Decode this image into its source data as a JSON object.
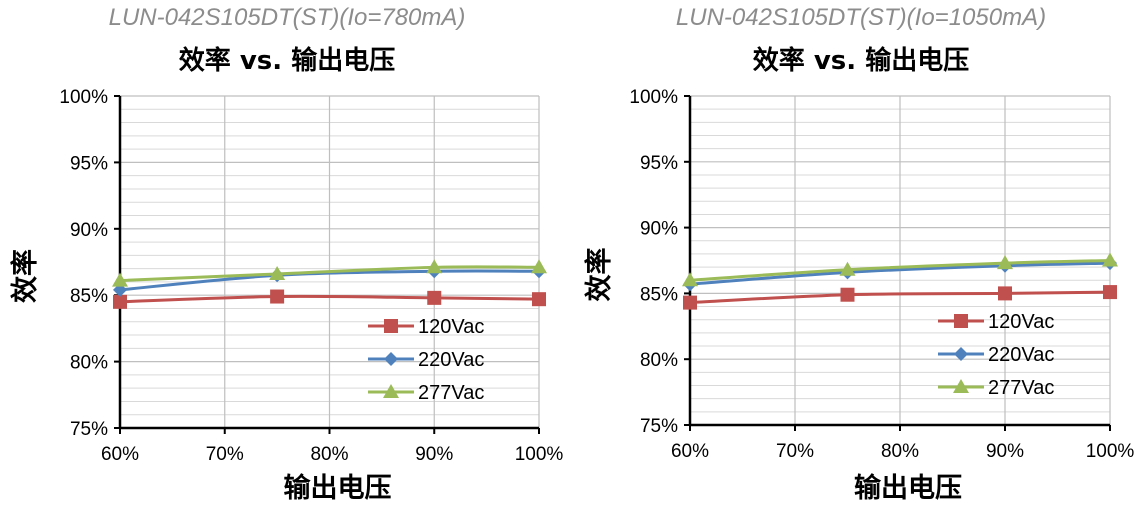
{
  "colors": {
    "series_120": "#c0504d",
    "series_220": "#4f81bd",
    "series_277": "#9bbb59",
    "grid": "#bfbfbf",
    "subtitle": "#8c8c8c"
  },
  "chart_data": [
    {
      "type": "line",
      "subtitle": "LUN-042S105DT(ST)(Io=780mA)",
      "title": "效率 vs. 输出电压",
      "xlabel": "输出电压",
      "ylabel": "效率",
      "x": [
        60,
        75,
        90,
        100
      ],
      "xticks": [
        60,
        70,
        80,
        90,
        100
      ],
      "xtick_labels": [
        "60%",
        "70%",
        "80%",
        "90%",
        "100%"
      ],
      "yticks": [
        75,
        80,
        85,
        90,
        95,
        100
      ],
      "ytick_labels": [
        "75%",
        "80%",
        "85%",
        "90%",
        "95%",
        "100%"
      ],
      "xlim": [
        60,
        100
      ],
      "ylim": [
        75,
        100
      ],
      "grid": true,
      "legend_position": "bottom-right",
      "series": [
        {
          "name": "120Vac",
          "marker": "square",
          "values": [
            84.5,
            84.9,
            84.8,
            84.7
          ]
        },
        {
          "name": "220Vac",
          "marker": "diamond",
          "values": [
            85.4,
            86.5,
            86.8,
            86.8
          ]
        },
        {
          "name": "277Vac",
          "marker": "triangle",
          "values": [
            86.1,
            86.6,
            87.1,
            87.1
          ]
        }
      ]
    },
    {
      "type": "line",
      "subtitle": "LUN-042S105DT(ST)(Io=1050mA)",
      "title": "效率 vs. 输出电压",
      "xlabel": "输出电压",
      "ylabel": "效率",
      "x": [
        60,
        75,
        90,
        100
      ],
      "xticks": [
        60,
        70,
        80,
        90,
        100
      ],
      "xtick_labels": [
        "60%",
        "70%",
        "80%",
        "90%",
        "100%"
      ],
      "yticks": [
        75,
        80,
        85,
        90,
        95,
        100
      ],
      "ytick_labels": [
        "75%",
        "80%",
        "85%",
        "90%",
        "95%",
        "100%"
      ],
      "xlim": [
        60,
        100
      ],
      "ylim": [
        75,
        100
      ],
      "grid": true,
      "legend_position": "bottom-right",
      "series": [
        {
          "name": "120Vac",
          "marker": "square",
          "values": [
            84.3,
            84.9,
            85.0,
            85.1
          ]
        },
        {
          "name": "220Vac",
          "marker": "diamond",
          "values": [
            85.7,
            86.6,
            87.1,
            87.3
          ]
        },
        {
          "name": "277Vac",
          "marker": "triangle",
          "values": [
            86.0,
            86.8,
            87.3,
            87.5
          ]
        }
      ]
    }
  ]
}
